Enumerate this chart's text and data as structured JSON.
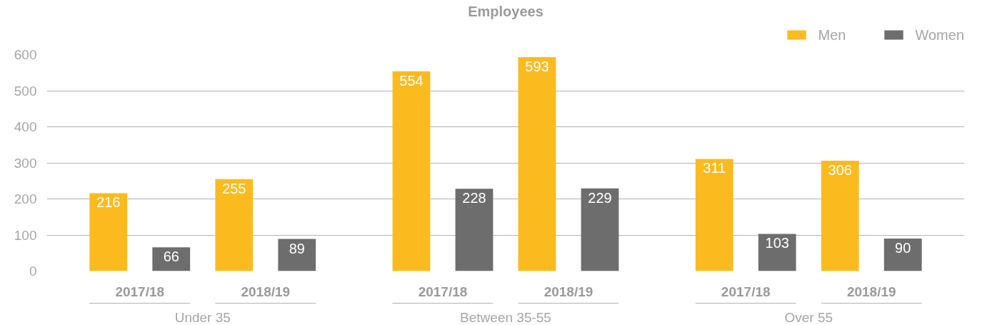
{
  "chart_data": {
    "type": "bar",
    "title": "Employees",
    "categories": [
      "2017/18",
      "2018/19",
      "2017/18",
      "2018/19",
      "2017/18",
      "2018/19"
    ],
    "annotations": [
      "Under 35",
      "Between 35-55",
      "Over 55"
    ],
    "series": [
      {
        "name": "Men",
        "color": "#fbbb1e",
        "values": [
          216,
          255,
          554,
          593,
          311,
          306
        ]
      },
      {
        "name": "Women",
        "color": "#6d6d6d",
        "values": [
          66,
          89,
          228,
          229,
          103,
          90
        ]
      }
    ],
    "ylim": [
      0,
      600
    ],
    "yticks": [
      0,
      100,
      200,
      300,
      400,
      500,
      600
    ],
    "grid": "y",
    "legend": "top right",
    "data_labels": true
  }
}
